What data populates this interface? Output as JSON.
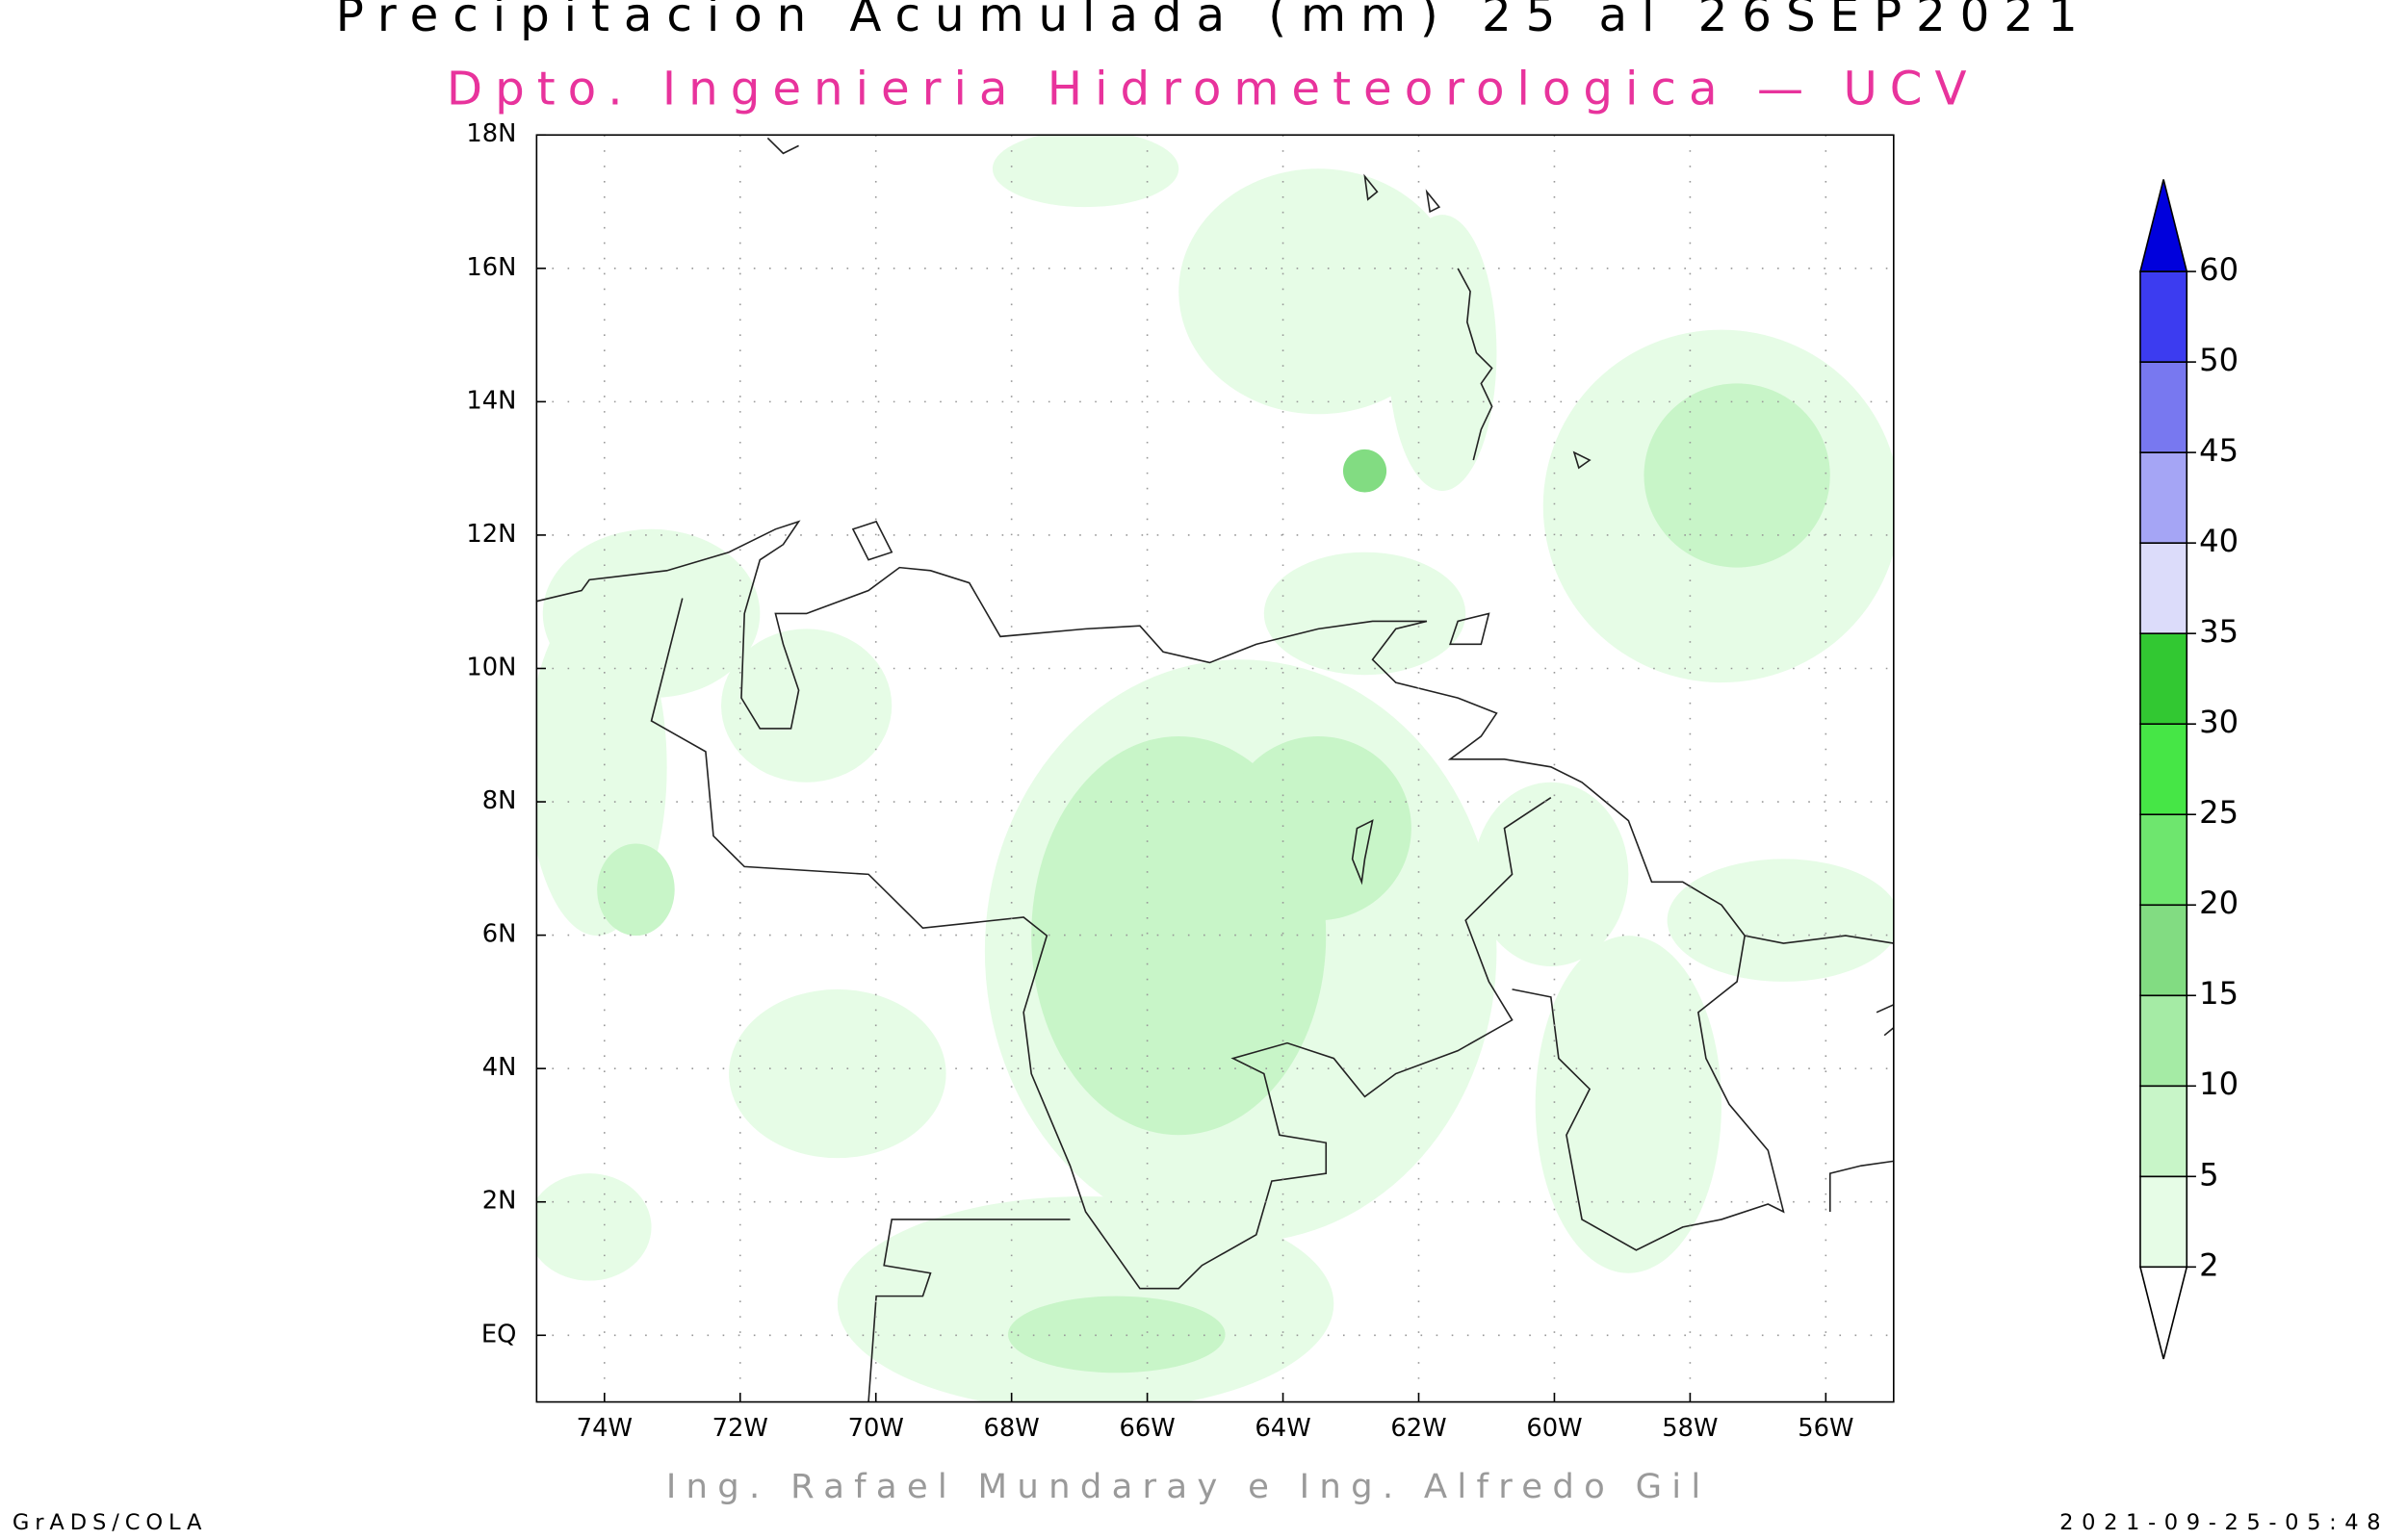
{
  "header": {
    "title": "Precipitacion Acumulada (mm) 25 al 26SEP2021",
    "subtitle": "Dpto. Ingenieria Hidrometeorologica — UCV"
  },
  "map": {
    "xlim": [
      -75,
      -55
    ],
    "ylim": [
      -1,
      18
    ],
    "xticks": [
      {
        "value": -74,
        "label": "74W"
      },
      {
        "value": -72,
        "label": "72W"
      },
      {
        "value": -70,
        "label": "70W"
      },
      {
        "value": -68,
        "label": "68W"
      },
      {
        "value": -66,
        "label": "66W"
      },
      {
        "value": -64,
        "label": "64W"
      },
      {
        "value": -62,
        "label": "62W"
      },
      {
        "value": -60,
        "label": "60W"
      },
      {
        "value": -58,
        "label": "58W"
      },
      {
        "value": -56,
        "label": "56W"
      }
    ],
    "yticks": [
      {
        "value": 0,
        "label": "EQ"
      },
      {
        "value": 2,
        "label": "2N"
      },
      {
        "value": 4,
        "label": "4N"
      },
      {
        "value": 6,
        "label": "6N"
      },
      {
        "value": 8,
        "label": "8N"
      },
      {
        "value": 10,
        "label": "10N"
      },
      {
        "value": 12,
        "label": "12N"
      },
      {
        "value": 14,
        "label": "14N"
      },
      {
        "value": 16,
        "label": "16N"
      },
      {
        "value": 18,
        "label": "18N"
      }
    ],
    "grid": true
  },
  "colorbar": {
    "levels": [
      2,
      5,
      10,
      15,
      20,
      25,
      30,
      35,
      40,
      45,
      50,
      60
    ],
    "below_color": "#ffffff",
    "colors": [
      "#e6fce6",
      "#c8f5c8",
      "#a5eba5",
      "#82dc82",
      "#6ee66e",
      "#46e646",
      "#32c832",
      "#dcdcfa",
      "#a5a5f5",
      "#7878f0",
      "#3c3cf0"
    ],
    "above_color": "#0000dc"
  },
  "footer": {
    "credits": "Ing. Rafael Mundaray e Ing. Alfredo Gil",
    "left": "GrADS/COLA",
    "right": "2021-09-25-05:48"
  }
}
